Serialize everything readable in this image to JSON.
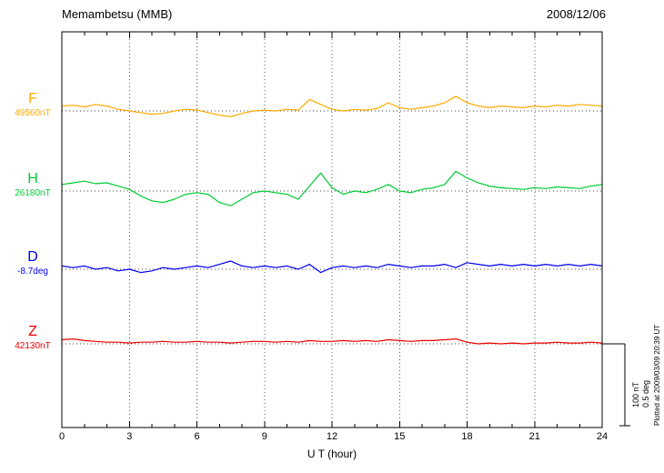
{
  "header": {
    "title": "Memambetsu (MMB)",
    "date": "2008/12/06"
  },
  "xaxis": {
    "label": "U T (hour)",
    "min": 0,
    "max": 24,
    "major_ticks": [
      0,
      3,
      6,
      9,
      12,
      15,
      18,
      21,
      24
    ],
    "minor_tick_step": 1
  },
  "scale_bar": {
    "line1": "100 nT",
    "line2": "0.5 deg"
  },
  "plotted_note": "Plotted at 2009/03/09 20:39 UT",
  "chart_data": {
    "type": "line",
    "title": "Memambetsu (MMB) magnetogram 2008/12/06",
    "xlabel": "U T (hour)",
    "x_unit": "hour",
    "x_start": 0,
    "x_step": 0.5,
    "xlim": [
      0,
      24
    ],
    "grid": "dotted-vertical-at-3h",
    "scale": {
      "nT_per_division": 100,
      "deg_per_division": 0.5
    },
    "series": [
      {
        "name": "F",
        "baseline_label": "49560nT",
        "unit": "nT",
        "color": "#ffaa00",
        "values": [
          6,
          7,
          5,
          8,
          6,
          2,
          0,
          -2,
          -4,
          -3,
          0,
          2,
          1,
          -2,
          -5,
          -7,
          -3,
          0,
          1,
          0,
          2,
          1,
          14,
          8,
          2,
          0,
          2,
          1,
          3,
          10,
          4,
          2,
          4,
          6,
          10,
          18,
          10,
          6,
          4,
          6,
          5,
          4,
          6,
          5,
          7,
          6,
          8,
          7,
          6
        ]
      },
      {
        "name": "H",
        "baseline_label": "26180nT",
        "unit": "nT",
        "color": "#00cc33",
        "values": [
          8,
          10,
          12,
          9,
          10,
          6,
          2,
          -6,
          -12,
          -14,
          -10,
          -4,
          -2,
          -4,
          -14,
          -18,
          -10,
          -2,
          0,
          -2,
          -4,
          -10,
          6,
          22,
          4,
          -4,
          0,
          -2,
          2,
          8,
          0,
          -2,
          2,
          4,
          8,
          24,
          16,
          10,
          6,
          4,
          3,
          2,
          4,
          3,
          5,
          4,
          3,
          6,
          8
        ]
      },
      {
        "name": "D",
        "baseline_label": "-8.7deg",
        "unit": "deg",
        "color": "#0000ee",
        "values": [
          0.02,
          0.01,
          0.02,
          0,
          0.01,
          -0.01,
          0,
          -0.02,
          -0.01,
          0.01,
          0,
          0.01,
          0.02,
          0.01,
          0.03,
          0.05,
          0.02,
          0.01,
          0.02,
          0.01,
          0.02,
          0,
          0.03,
          -0.02,
          0.01,
          0.02,
          0.01,
          0.02,
          0.01,
          0.03,
          0.02,
          0.01,
          0.02,
          0.02,
          0.03,
          0.01,
          0.04,
          0.03,
          0.02,
          0.03,
          0.02,
          0.03,
          0.02,
          0.03,
          0.02,
          0.03,
          0.02,
          0.03,
          0.02
        ]
      },
      {
        "name": "Z",
        "baseline_label": "42130nT",
        "unit": "nT",
        "color": "#ee0000",
        "values": [
          5,
          6,
          4,
          3,
          2,
          2,
          1,
          2,
          2,
          3,
          2,
          2,
          3,
          2,
          2,
          1,
          2,
          3,
          3,
          2,
          3,
          2,
          4,
          3,
          3,
          4,
          3,
          4,
          3,
          5,
          4,
          3,
          4,
          4,
          5,
          6,
          2,
          0,
          1,
          0,
          1,
          0,
          1,
          1,
          2,
          1,
          1,
          2,
          1
        ]
      }
    ]
  }
}
